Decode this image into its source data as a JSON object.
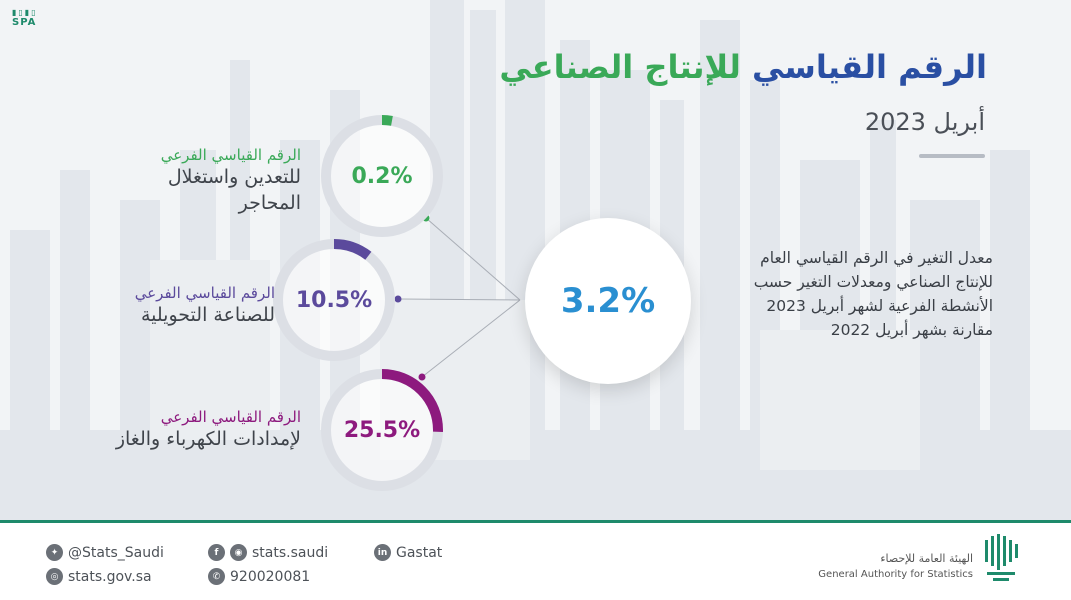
{
  "brand": {
    "spa_logo": "SPA"
  },
  "header": {
    "title_part1": "الرقم القياسي",
    "title_part2": "للإنتاج الصناعي",
    "subtitle": "أبريل 2023"
  },
  "indicators": [
    {
      "key": "mining",
      "line1": "الرقم القياسي الفرعي",
      "line2": "للتعدين واستغلال",
      "line3": "المحاجر",
      "value": "0.2%",
      "fraction": 0.002,
      "color": "#3aa958"
    },
    {
      "key": "manufacturing",
      "line1": "الرقم القياسي الفرعي",
      "line2": "للصناعة التحويلية",
      "value": "10.5%",
      "fraction": 0.105,
      "color": "#5b4a9c"
    },
    {
      "key": "electricity",
      "line1": "الرقم القياسي الفرعي",
      "line2": "لإمدادات الكهرباء والغاز",
      "value": "25.5%",
      "fraction": 0.255,
      "color": "#8d1a7e"
    }
  ],
  "main": {
    "value": "3.2%",
    "color": "#2a8fd1"
  },
  "description": "معدل التغير في الرقم القياسي العام للإنتاج الصناعي ومعدلات التغير حسب الأنشطة الفرعية لشهر أبريل 2023 مقارنة بشهر أبريل 2022",
  "footer": {
    "twitter": "@Stats_Saudi",
    "website": "stats.gov.sa",
    "social": "stats.saudi",
    "phone": "920020081",
    "linkedin": "Gastat",
    "org_ar": "الهيئة العامة للإحصاء",
    "org_en": "General Authority for Statistics",
    "accent": "#1e8a6b"
  }
}
